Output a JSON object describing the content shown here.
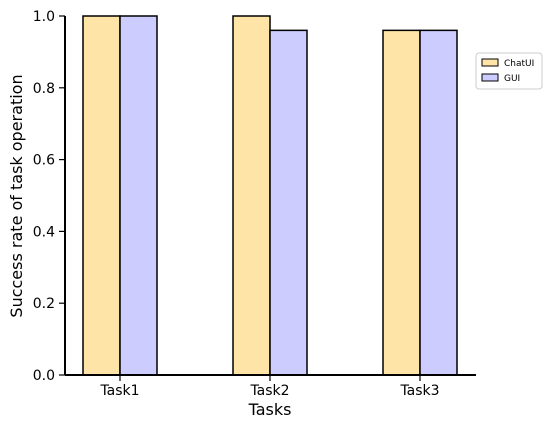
{
  "chart_data": {
    "type": "bar",
    "title": "",
    "xlabel": "Tasks",
    "ylabel": "Success rate of task operation",
    "categories": [
      "Task1",
      "Task2",
      "Task3"
    ],
    "series": [
      {
        "name": "ChatUI",
        "values": [
          1.0,
          1.0,
          0.96
        ],
        "color": "#ffe4a8"
      },
      {
        "name": "GUI",
        "values": [
          1.0,
          0.96,
          0.96
        ],
        "color": "#ccccff"
      }
    ],
    "ylim": [
      0,
      1.0
    ],
    "yticks": [
      "0.0",
      "0.2",
      "0.4",
      "0.6",
      "0.8",
      "1.0"
    ],
    "grid": false,
    "legend_position": "top-right",
    "edge_color": "#000000"
  }
}
